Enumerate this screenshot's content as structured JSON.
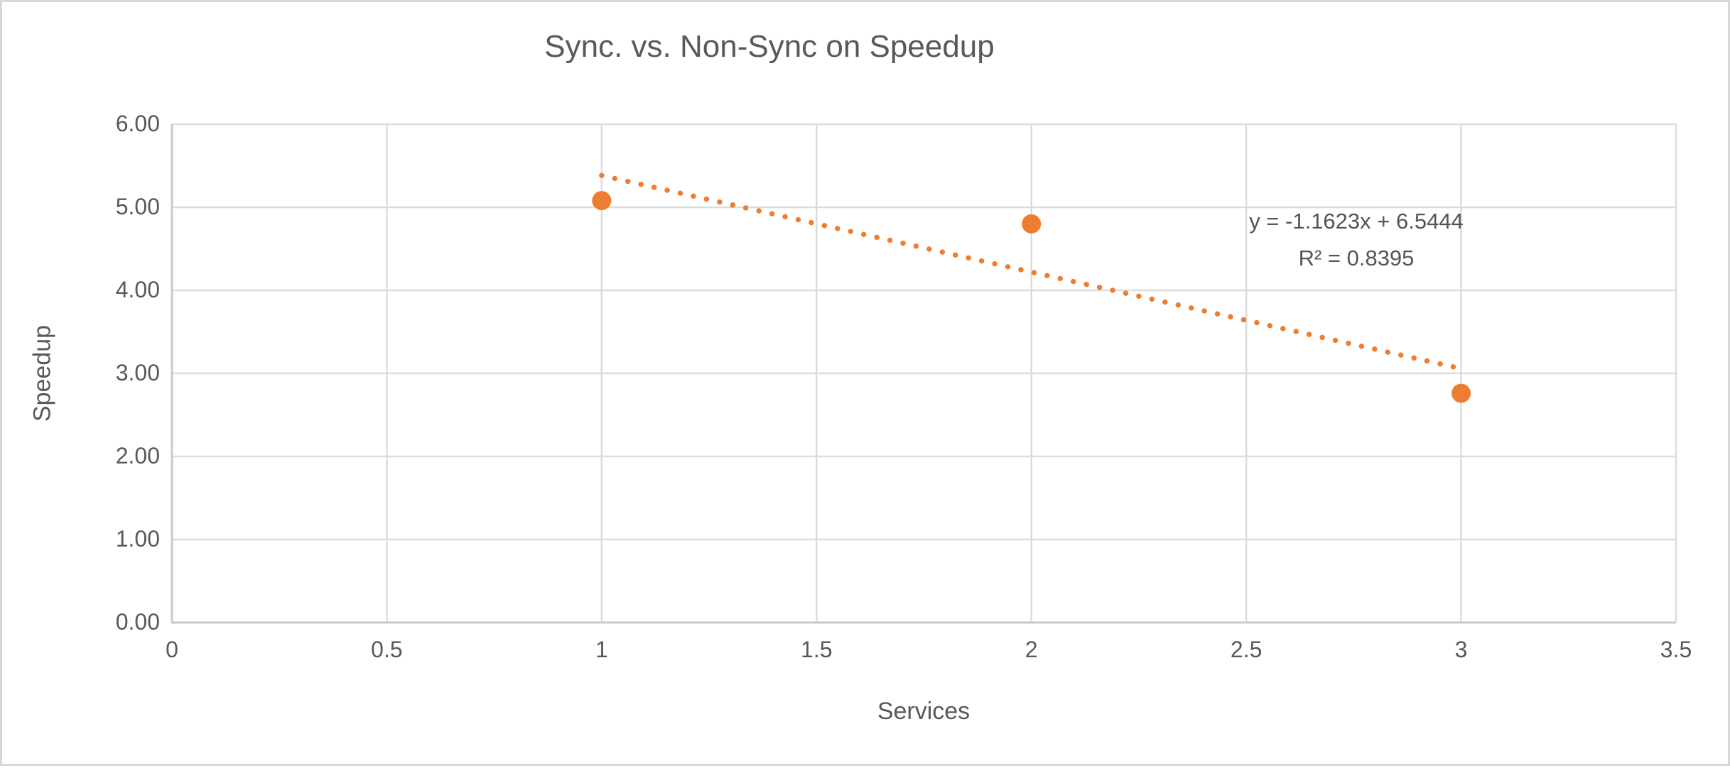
{
  "chart_data": {
    "type": "scatter",
    "title": "Sync. vs. Non-Sync on Speedup",
    "xlabel": "Services",
    "ylabel": "Speedup",
    "xlim": [
      0,
      3.5
    ],
    "ylim": [
      0,
      6
    ],
    "grid": true,
    "x_ticks": [
      0,
      0.5,
      1,
      1.5,
      2,
      2.5,
      3,
      3.5
    ],
    "x_tick_labels": [
      "0",
      "0.5",
      "1",
      "1.5",
      "2",
      "2.5",
      "3",
      "3.5"
    ],
    "y_ticks": [
      0,
      1,
      2,
      3,
      4,
      5,
      6
    ],
    "y_tick_labels": [
      "0.00",
      "1.00",
      "2.00",
      "3.00",
      "4.00",
      "5.00",
      "6.00"
    ],
    "series": [
      {
        "name": "Speedup",
        "marker": "circle",
        "color": "#ED7D31",
        "x": [
          1,
          2,
          3
        ],
        "y": [
          5.08,
          4.8,
          2.76
        ]
      }
    ],
    "trendline": {
      "style": "dotted",
      "color": "#ED7D31",
      "slope": -1.1623,
      "intercept": 6.5444,
      "r_squared": 0.8395,
      "x_start": 1,
      "x_end": 3,
      "equation_label": "y = -1.1623x + 6.5444",
      "r_squared_label": "R² = 0.8395"
    },
    "colors": {
      "marker": "#ED7D31",
      "trendline": "#ED7D31",
      "gridline": "#dcdcdc",
      "axis_line": "#c9c9c9",
      "text": "#595959",
      "background": "#ffffff"
    },
    "legend": null
  }
}
